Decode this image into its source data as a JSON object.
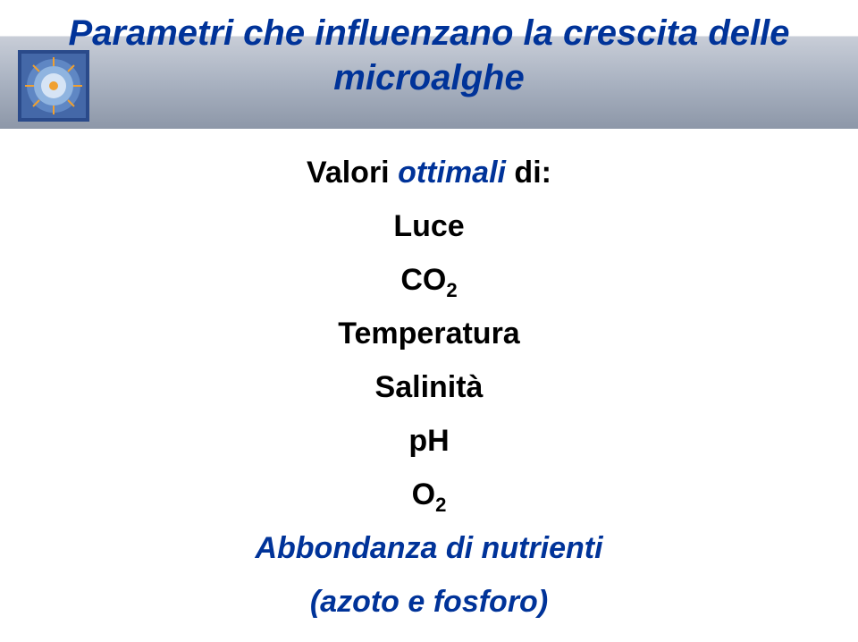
{
  "title": {
    "line1": "Parametri che influenzano la crescita delle",
    "line2": "microalghe",
    "color": "#003399",
    "fontsize": 40,
    "italic": true,
    "bold": true
  },
  "title_bar": {
    "gradient_top": "#c9ced8",
    "gradient_mid": "#a9b2c1",
    "gradient_bottom": "#8d97a8"
  },
  "logo": {
    "bg": "#2a4a8a",
    "mid": "#5f87c4",
    "light": "#d6e4f5",
    "accent": "#f0a030"
  },
  "body": {
    "intro_prefix": "Valori ",
    "intro_emph": "ottimali",
    "intro_suffix": " di:",
    "items": [
      {
        "text": "Luce"
      },
      {
        "text_html": "CO<sub>2</sub>"
      },
      {
        "text": "Temperatura"
      },
      {
        "text": "Salinità"
      },
      {
        "text": "pH"
      },
      {
        "text_html": "O<sub>2</sub>"
      }
    ],
    "footer_line1": "Abbondanza di nutrienti",
    "footer_line2": "(azoto e fosforo)",
    "text_color": "#000000",
    "emph_color": "#003399",
    "fontsize": 34,
    "bold": true
  },
  "background_color": "#ffffff"
}
